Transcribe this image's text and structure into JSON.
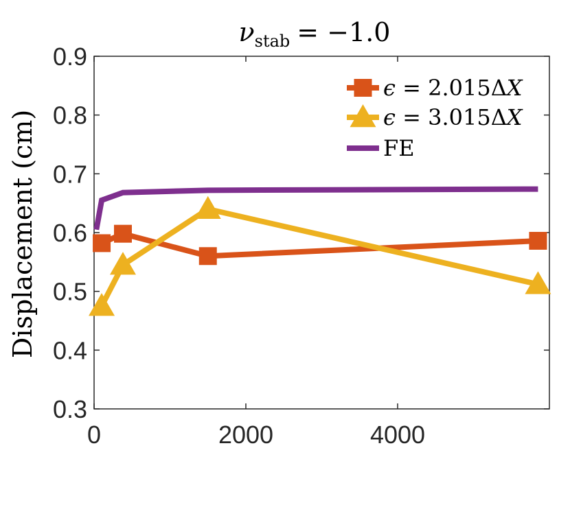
{
  "chart_data": {
    "type": "line",
    "title": "ν_stab = −1.0",
    "title_symbol": "ν",
    "title_subscript": "stab",
    "title_rest": "= −1.0",
    "xlabel": "",
    "ylabel": "Displacement (cm)",
    "xlim": [
      0,
      6000
    ],
    "ylim": [
      0.3,
      0.9
    ],
    "xticks": [
      0,
      2000,
      4000
    ],
    "xtick_labels": [
      "0",
      "2000",
      "4000"
    ],
    "yticks": [
      0.3,
      0.4,
      0.5,
      0.6,
      0.7,
      0.8,
      0.9
    ],
    "ytick_labels": [
      "0.3",
      "0.4",
      "0.5",
      "0.6",
      "0.7",
      "0.8",
      "0.9"
    ],
    "grid": false,
    "legend_position": "top-right",
    "series": [
      {
        "name": "ϵ = 2.015ΔX",
        "color": "#D95319",
        "marker": "square",
        "x": [
          100,
          380,
          1500,
          5850
        ],
        "y": [
          0.582,
          0.598,
          0.56,
          0.586
        ]
      },
      {
        "name": "ϵ = 3.015ΔX",
        "color": "#EDB120",
        "marker": "triangle",
        "x": [
          100,
          380,
          1500,
          5850
        ],
        "y": [
          0.475,
          0.545,
          0.64,
          0.512
        ]
      },
      {
        "name": "FE",
        "color": "#7E2F8E",
        "marker": "none",
        "x": [
          30,
          100,
          380,
          1500,
          5850
        ],
        "y": [
          0.605,
          0.655,
          0.668,
          0.672,
          0.674
        ]
      }
    ]
  }
}
